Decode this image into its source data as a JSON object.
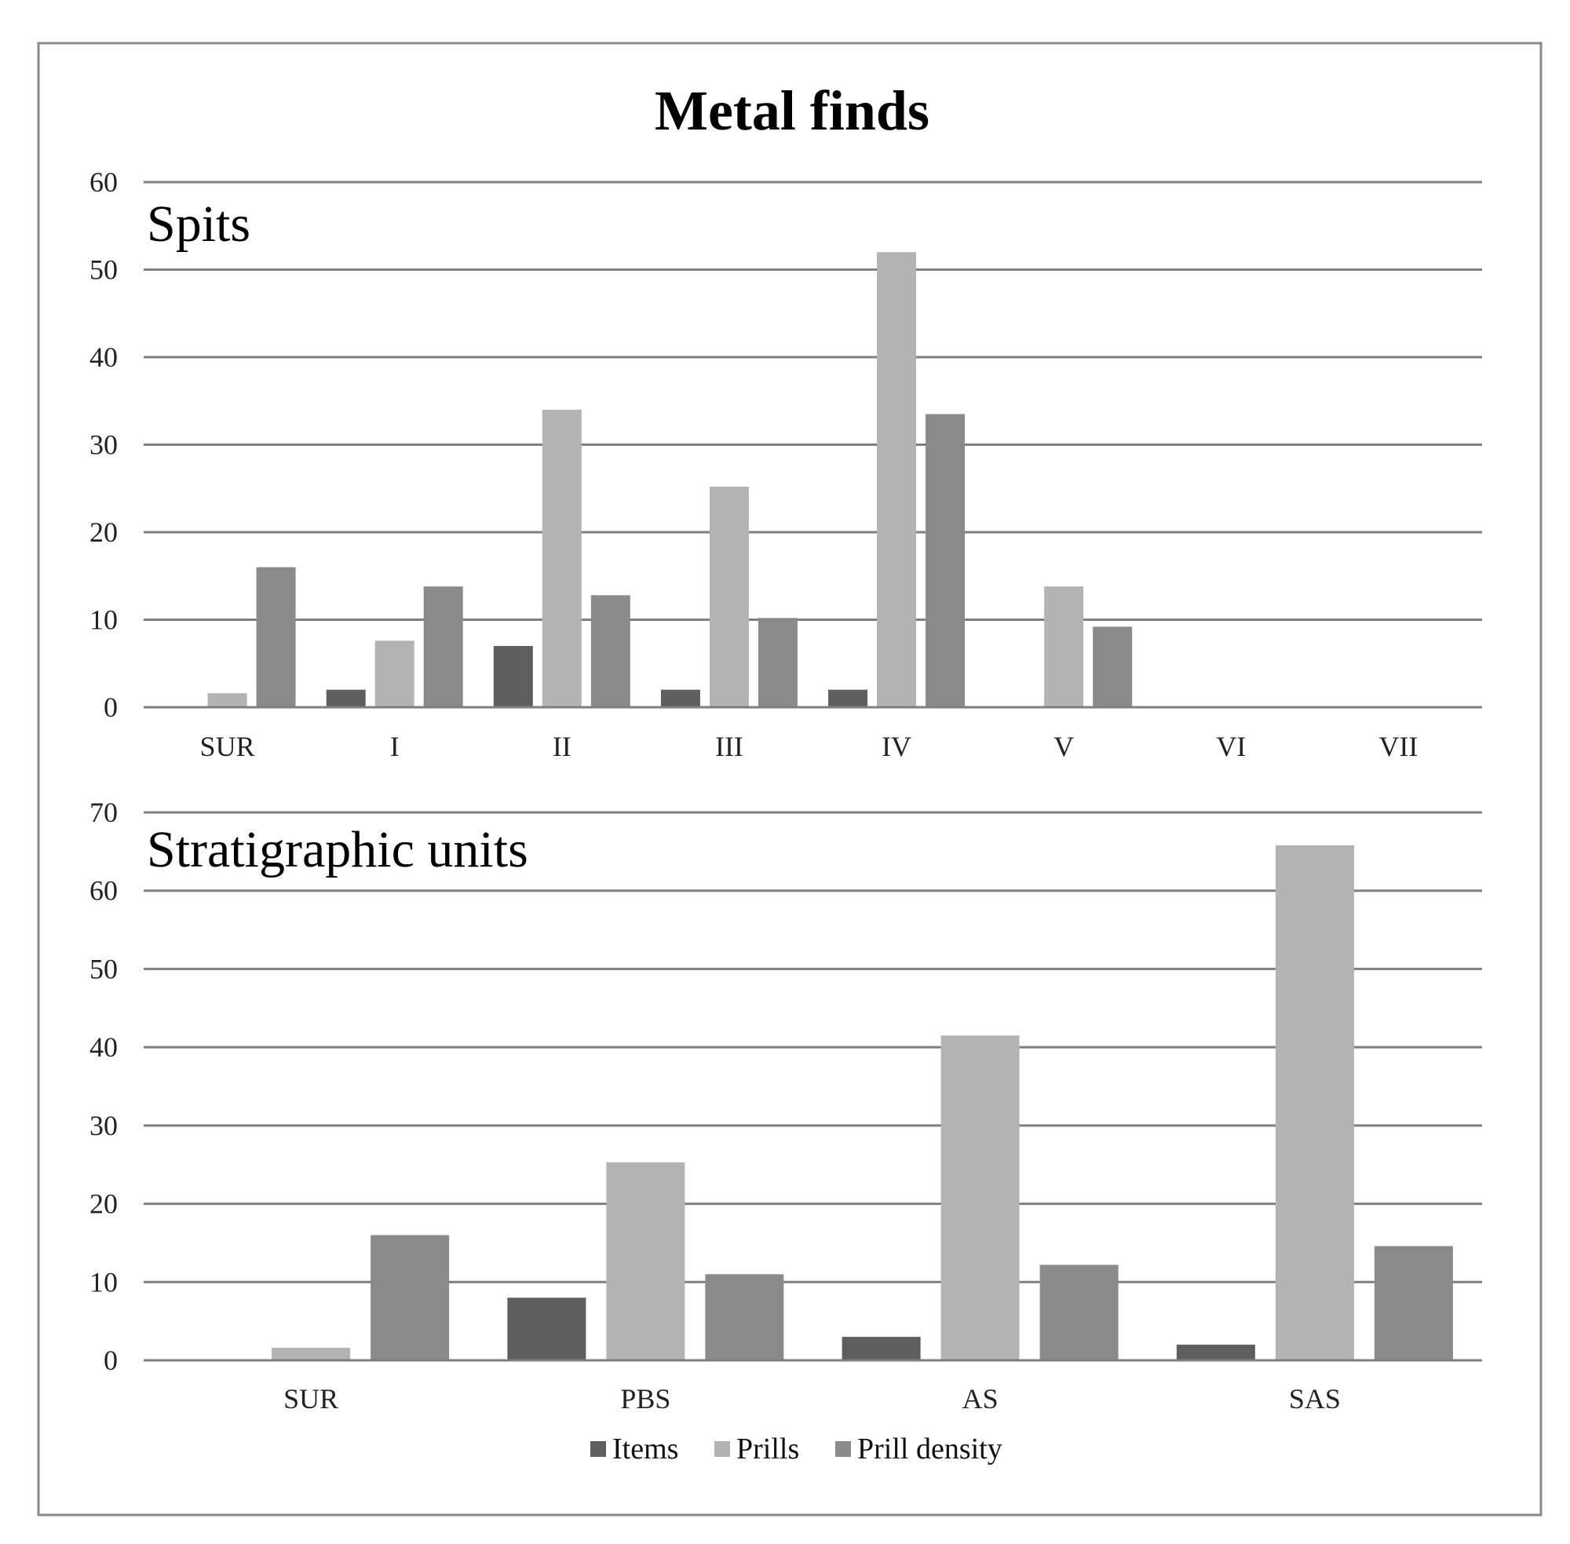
{
  "chart_data": [
    {
      "type": "bar",
      "title": "Metal finds",
      "subtitle": "Spits",
      "xlabel": "",
      "ylabel": "",
      "ylim": [
        0,
        60
      ],
      "yticks": [
        0,
        10,
        20,
        30,
        40,
        50,
        60
      ],
      "grid": true,
      "categories": [
        "SUR",
        "I",
        "II",
        "III",
        "IV",
        "V",
        "VI",
        "VII"
      ],
      "series": [
        {
          "name": "Items",
          "color": "#5e5e5e",
          "values": [
            0,
            2,
            7,
            2,
            2,
            0,
            0,
            0
          ]
        },
        {
          "name": "Prills",
          "color": "#b3b3b3",
          "values": [
            1.6,
            7.6,
            34,
            25.2,
            52,
            13.8,
            0,
            0
          ]
        },
        {
          "name": "Prill density",
          "color": "#8a8a8a",
          "values": [
            16,
            13.8,
            12.8,
            10.2,
            33.5,
            9.2,
            0,
            0
          ]
        }
      ]
    },
    {
      "type": "bar",
      "subtitle": "Stratigraphic units",
      "xlabel": "",
      "ylabel": "",
      "ylim": [
        0,
        70
      ],
      "yticks": [
        0,
        10,
        20,
        30,
        40,
        50,
        60,
        70
      ],
      "grid": true,
      "categories": [
        "SUR",
        "PBS",
        "AS",
        "SAS"
      ],
      "series": [
        {
          "name": "Items",
          "color": "#5e5e5e",
          "values": [
            0,
            8,
            3,
            2
          ]
        },
        {
          "name": "Prills",
          "color": "#b3b3b3",
          "values": [
            1.6,
            25.3,
            41.5,
            65.8
          ]
        },
        {
          "name": "Prill density",
          "color": "#8a8a8a",
          "values": [
            16,
            11,
            12.2,
            14.6
          ]
        }
      ]
    }
  ],
  "legend": {
    "placement": "bottom-center",
    "items": [
      {
        "label": "Items",
        "color": "#5e5e5e"
      },
      {
        "label": "Prills",
        "color": "#b3b3b3"
      },
      {
        "label": "Prill density",
        "color": "#8a8a8a"
      }
    ]
  }
}
